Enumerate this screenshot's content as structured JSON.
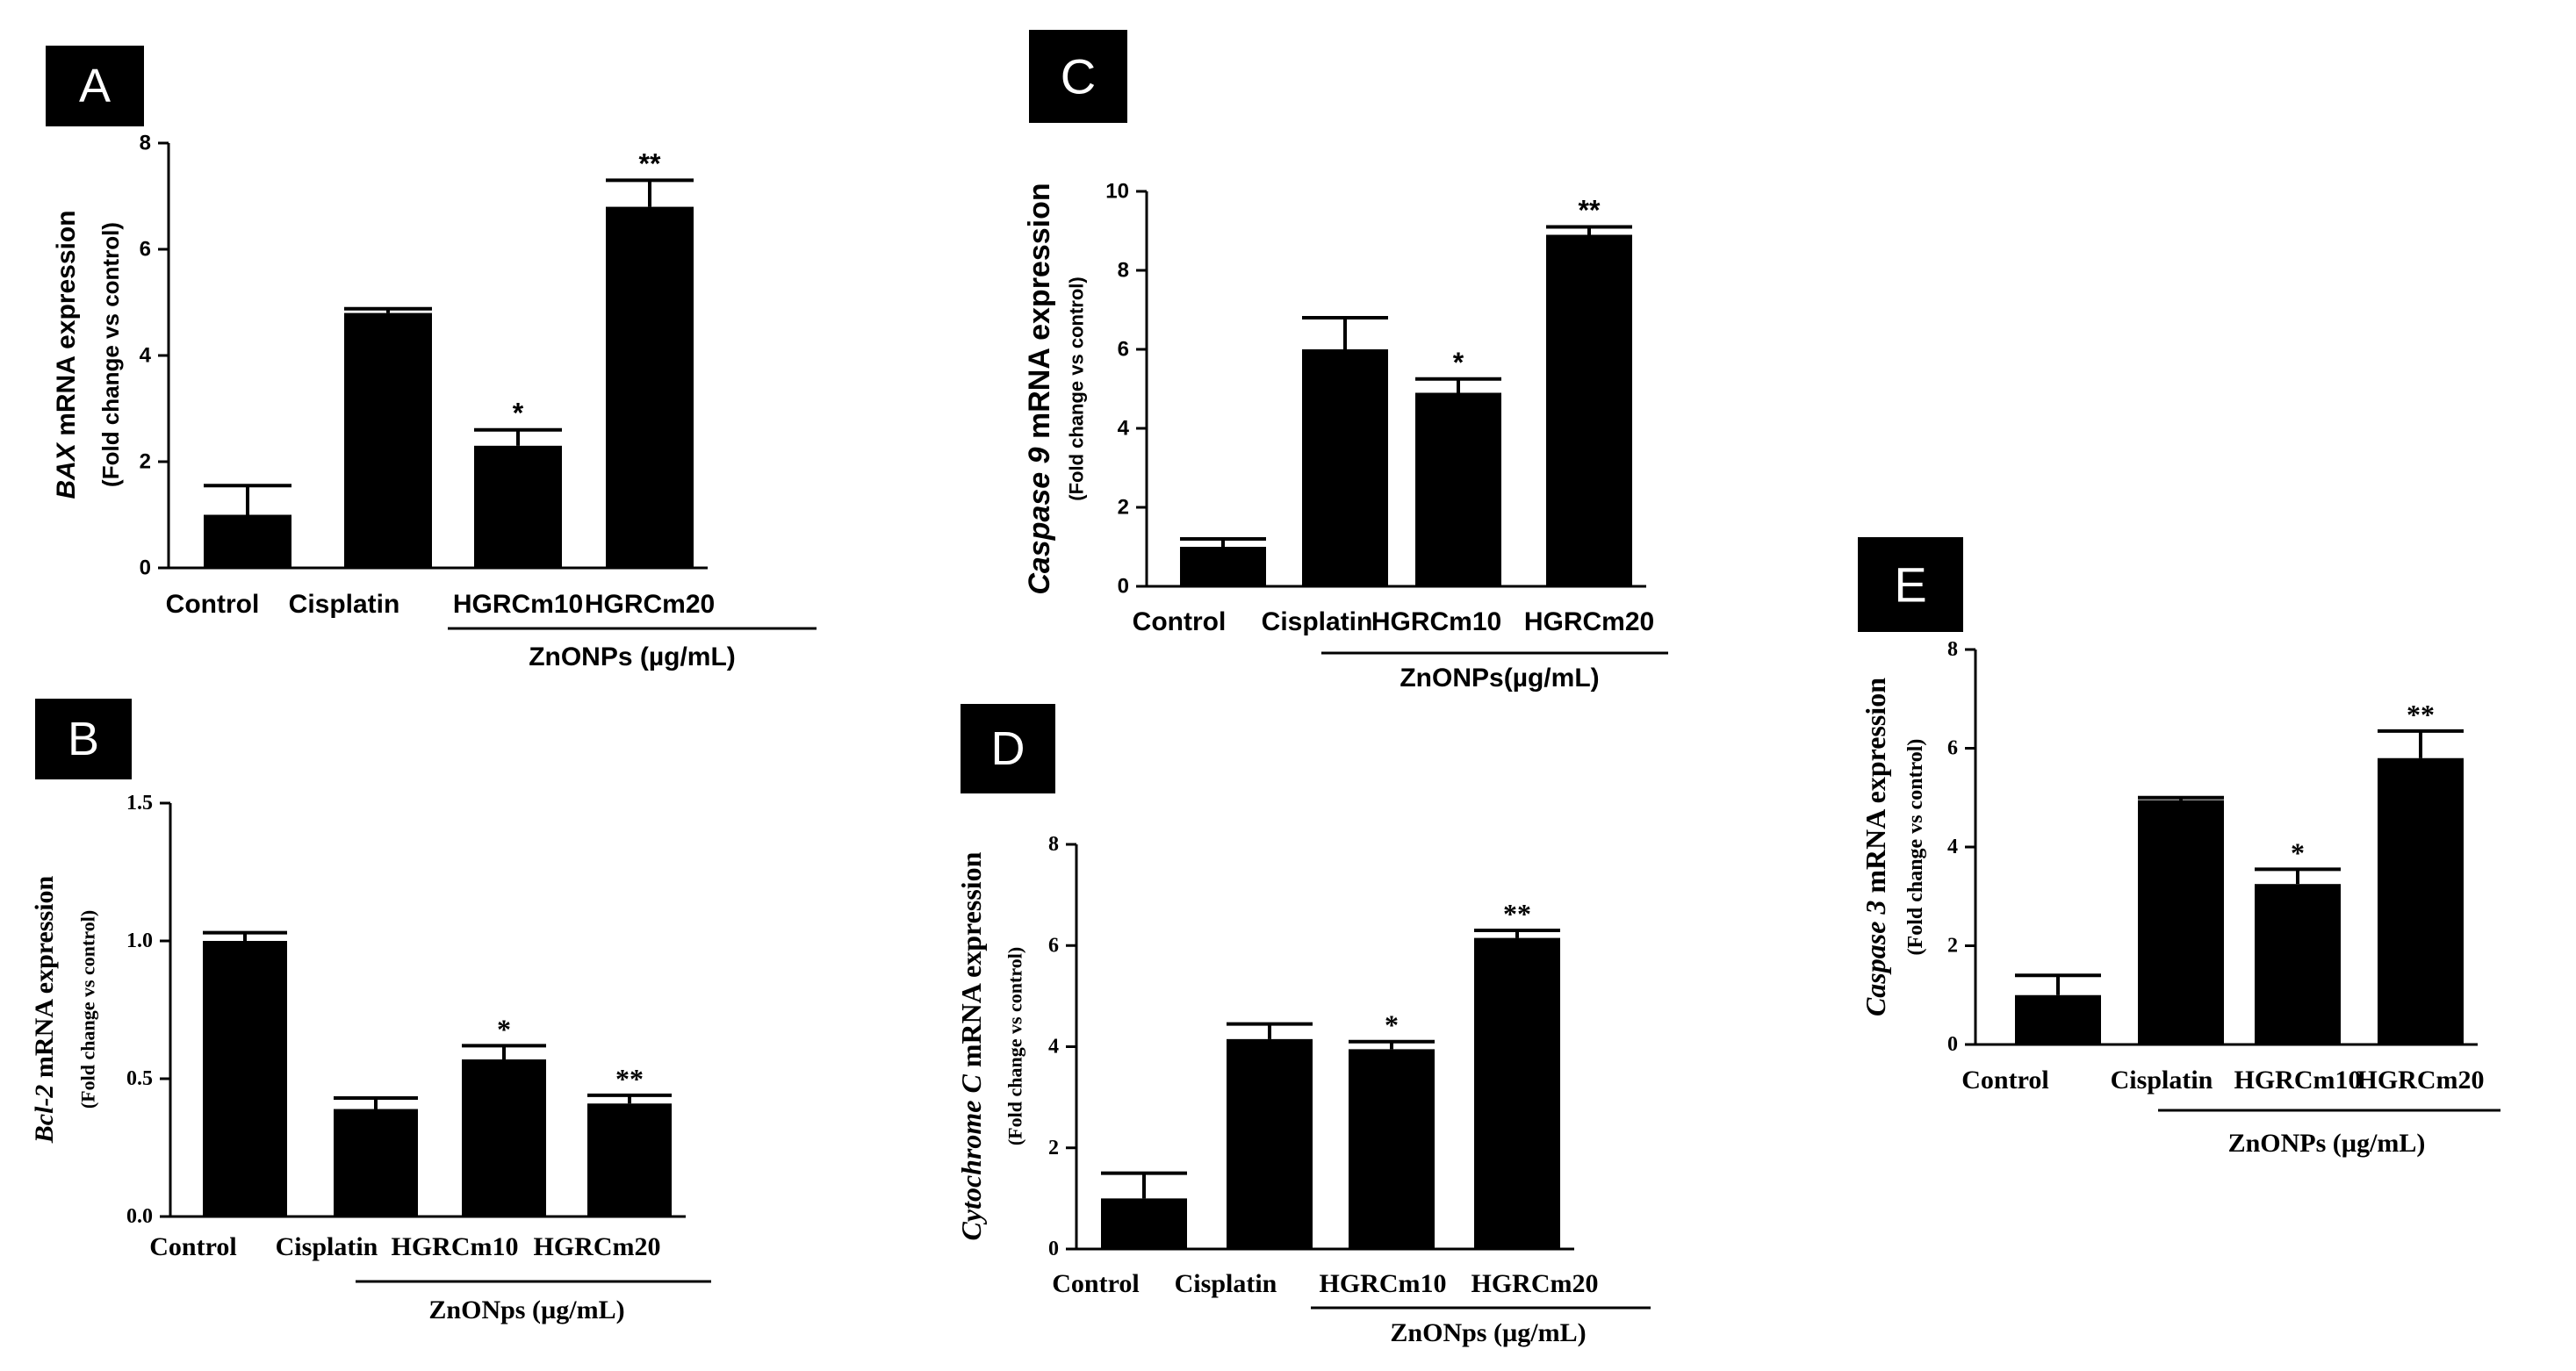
{
  "colors": {
    "bar": "#000000",
    "axis": "#000000",
    "panel_label_bg": "#000000",
    "panel_label_text": "#ffffff"
  },
  "chart_data": [
    {
      "panel": "A",
      "type": "bar",
      "font": "sans",
      "ylabel_gene": "BAX",
      "ylabel_rest": " mRNA expression",
      "ylabel_sub": "(Fold change vs control)",
      "yticks": [
        "0",
        "2",
        "4",
        "6",
        "8"
      ],
      "ylim": [
        0,
        8
      ],
      "categories": [
        "Control",
        "Cisplatin",
        "HGRCm10",
        "HGRCm20"
      ],
      "values": [
        1.0,
        4.8,
        2.3,
        6.8
      ],
      "errors": [
        0.55,
        0.08,
        0.3,
        0.5
      ],
      "significance": [
        "",
        "",
        "*",
        "**"
      ],
      "group_label": "ZnONPs (µg/mL)"
    },
    {
      "panel": "B",
      "type": "bar",
      "font": "serif",
      "ylabel_gene": "Bcl-2",
      "ylabel_rest": " mRNA expression",
      "ylabel_sub": "(Fold change vs control)",
      "yticks": [
        "0.0",
        "0.5",
        "1.0",
        "1.5"
      ],
      "ylim": [
        0,
        1.5
      ],
      "categories": [
        "Control",
        "Cisplatin",
        "HGRCm10",
        "HGRCm20"
      ],
      "values": [
        1.0,
        0.39,
        0.57,
        0.41
      ],
      "errors": [
        0.03,
        0.04,
        0.05,
        0.03
      ],
      "significance": [
        "",
        "",
        "*",
        "**"
      ],
      "group_label": "ZnONps (µg/mL)"
    },
    {
      "panel": "C",
      "type": "bar",
      "font": "sans",
      "ylabel_gene": "Caspase 9",
      "ylabel_rest": " mRNA expression",
      "ylabel_sub": "(Fold change vs control)",
      "yticks": [
        "0",
        "2",
        "4",
        "6",
        "8",
        "10"
      ],
      "ylim": [
        0,
        10
      ],
      "categories": [
        "Control",
        "Cisplatin",
        "HGRCm10",
        "HGRCm20"
      ],
      "values": [
        1.0,
        6.0,
        4.9,
        8.9
      ],
      "errors": [
        0.2,
        0.8,
        0.35,
        0.2
      ],
      "significance": [
        "",
        "",
        "*",
        "**"
      ],
      "group_label": "ZnONPs(µg/mL)"
    },
    {
      "panel": "D",
      "type": "bar",
      "font": "serif",
      "ylabel_gene": "Cytochrome C",
      "ylabel_rest": " mRNA expression",
      "ylabel_sub": "(Fold change vs control)",
      "yticks": [
        "0",
        "2",
        "4",
        "6",
        "8"
      ],
      "ylim": [
        0,
        8
      ],
      "categories": [
        "Control",
        "Cisplatin",
        "HGRCm10",
        "HGRCm20"
      ],
      "values": [
        1.0,
        4.15,
        3.95,
        6.15
      ],
      "errors": [
        0.5,
        0.3,
        0.15,
        0.15
      ],
      "significance": [
        "",
        "",
        "*",
        "**"
      ],
      "group_label": "ZnONps (µg/mL)"
    },
    {
      "panel": "E",
      "type": "bar",
      "font": "serif",
      "ylabel_gene": "Caspase 3",
      "ylabel_rest": " mRNA expression",
      "ylabel_sub": "(Fold change vs control)",
      "yticks": [
        "0",
        "2",
        "4",
        "6",
        "8"
      ],
      "ylim": [
        0,
        8
      ],
      "categories": [
        "Control",
        "Cisplatin",
        "HGRCm10",
        "HGRCm20"
      ],
      "values": [
        1.0,
        4.95,
        3.25,
        5.8
      ],
      "errors": [
        0.4,
        0.05,
        0.3,
        0.55
      ],
      "significance": [
        "",
        "",
        "*",
        "**"
      ],
      "group_label": "ZnONPs (µg/mL)"
    }
  ]
}
